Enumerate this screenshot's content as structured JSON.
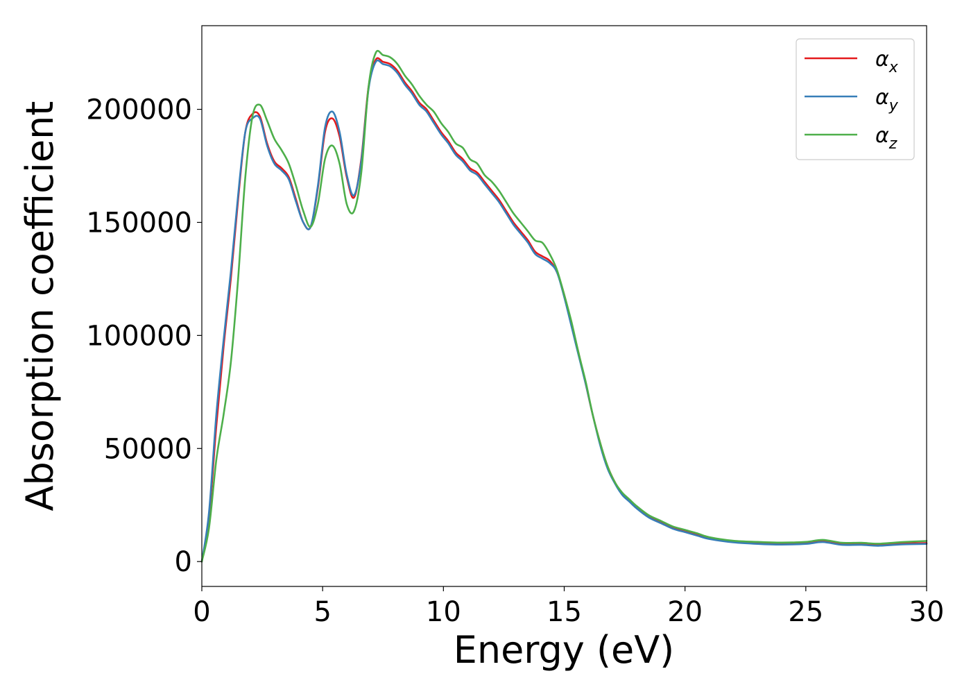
{
  "chart_data": {
    "type": "line",
    "xlabel": "Energy (eV)",
    "ylabel": "Absorption coefficient",
    "xlim": [
      0,
      30
    ],
    "ylim": [
      -11000,
      237000
    ],
    "xticks": [
      "0",
      "5",
      "10",
      "15",
      "20",
      "25",
      "30"
    ],
    "yticks": [
      "0",
      "50000",
      "100000",
      "150000",
      "200000"
    ],
    "grid": false,
    "legend_position": "top-right",
    "series": [
      {
        "name": "α_x",
        "legend_main": "α",
        "legend_sub": "x",
        "color": "#e41a1c",
        "x": [
          0,
          0.3,
          0.6,
          0.9,
          1.2,
          1.5,
          1.8,
          2.1,
          2.4,
          2.7,
          3.0,
          3.3,
          3.6,
          3.9,
          4.2,
          4.5,
          4.8,
          5.1,
          5.4,
          5.7,
          6.0,
          6.3,
          6.6,
          6.9,
          7.2,
          7.5,
          7.8,
          8.1,
          8.4,
          8.7,
          9.0,
          9.3,
          9.6,
          9.9,
          10.2,
          10.5,
          10.8,
          11.1,
          11.4,
          11.7,
          12.0,
          12.3,
          12.6,
          12.9,
          13.2,
          13.5,
          13.8,
          14.1,
          14.4,
          14.7,
          15.0,
          15.3,
          15.6,
          15.9,
          16.2,
          16.5,
          16.8,
          17.1,
          17.4,
          17.7,
          18.0,
          18.5,
          19.0,
          19.5,
          20.0,
          20.5,
          21.0,
          22.0,
          23.0,
          24.0,
          25.0,
          25.7,
          26.5,
          27.3,
          28.0,
          29.0,
          30.0
        ],
        "y": [
          0,
          20000,
          60000,
          95000,
          125000,
          160000,
          190000,
          198000,
          197000,
          185000,
          177000,
          174000,
          170000,
          160000,
          150000,
          148000,
          165000,
          190000,
          196000,
          188000,
          170000,
          161000,
          178000,
          210000,
          222000,
          221000,
          220000,
          217000,
          212000,
          208000,
          203000,
          200000,
          195000,
          190000,
          186000,
          181000,
          178000,
          174000,
          172000,
          168000,
          164000,
          160000,
          155000,
          150000,
          146000,
          142000,
          137000,
          135000,
          133000,
          128000,
          118000,
          105000,
          92000,
          78000,
          64000,
          52000,
          42000,
          35000,
          30000,
          27000,
          24000,
          20000,
          17500,
          15000,
          13500,
          12000,
          10500,
          9000,
          8300,
          8000,
          8200,
          9000,
          7800,
          7800,
          7500,
          8000,
          8200
        ]
      },
      {
        "name": "α_y",
        "legend_main": "α",
        "legend_sub": "y",
        "color": "#377eb8",
        "x": [
          0,
          0.3,
          0.6,
          0.9,
          1.2,
          1.5,
          1.8,
          2.1,
          2.4,
          2.7,
          3.0,
          3.3,
          3.6,
          3.9,
          4.2,
          4.5,
          4.8,
          5.1,
          5.4,
          5.7,
          6.0,
          6.3,
          6.6,
          6.9,
          7.2,
          7.5,
          7.8,
          8.1,
          8.4,
          8.7,
          9.0,
          9.3,
          9.6,
          9.9,
          10.2,
          10.5,
          10.8,
          11.1,
          11.4,
          11.7,
          12.0,
          12.3,
          12.6,
          12.9,
          13.2,
          13.5,
          13.8,
          14.1,
          14.4,
          14.7,
          15.0,
          15.3,
          15.6,
          15.9,
          16.2,
          16.5,
          16.8,
          17.1,
          17.4,
          17.7,
          18.0,
          18.5,
          19.0,
          19.5,
          20.0,
          20.5,
          21.0,
          22.0,
          23.0,
          24.0,
          25.0,
          25.7,
          26.5,
          27.3,
          28.0,
          29.0,
          30.0
        ],
        "y": [
          0,
          22000,
          65000,
          98000,
          128000,
          162000,
          190000,
          196000,
          196000,
          184000,
          176000,
          173000,
          169000,
          159000,
          150000,
          148000,
          166000,
          192000,
          199000,
          190000,
          171000,
          162000,
          177000,
          209000,
          221000,
          220000,
          219000,
          216000,
          211000,
          207000,
          202000,
          199000,
          194000,
          189000,
          185000,
          180000,
          177000,
          173000,
          171000,
          167000,
          163000,
          159000,
          154000,
          149000,
          145000,
          141000,
          136000,
          134000,
          132000,
          128000,
          117000,
          104000,
          91000,
          78000,
          64000,
          51000,
          41000,
          34500,
          29500,
          26500,
          23500,
          19500,
          17000,
          14500,
          13000,
          11500,
          10000,
          8500,
          7800,
          7500,
          7800,
          8600,
          7400,
          7400,
          7000,
          7600,
          7800
        ]
      },
      {
        "name": "α_z",
        "legend_main": "α",
        "legend_sub": "z",
        "color": "#4daf4a",
        "x": [
          0,
          0.3,
          0.6,
          0.9,
          1.2,
          1.5,
          1.8,
          2.1,
          2.4,
          2.7,
          3.0,
          3.3,
          3.6,
          3.9,
          4.2,
          4.5,
          4.8,
          5.1,
          5.4,
          5.7,
          6.0,
          6.3,
          6.6,
          6.9,
          7.2,
          7.5,
          7.8,
          8.1,
          8.4,
          8.7,
          9.0,
          9.3,
          9.6,
          9.9,
          10.2,
          10.5,
          10.8,
          11.1,
          11.4,
          11.7,
          12.0,
          12.3,
          12.6,
          12.9,
          13.2,
          13.5,
          13.8,
          14.1,
          14.4,
          14.7,
          15.0,
          15.3,
          15.6,
          15.9,
          16.2,
          16.5,
          16.8,
          17.1,
          17.4,
          17.7,
          18.0,
          18.5,
          19.0,
          19.5,
          20.0,
          20.5,
          21.0,
          22.0,
          23.0,
          24.0,
          25.0,
          25.7,
          26.5,
          27.3,
          28.0,
          29.0,
          30.0
        ],
        "y": [
          0,
          15000,
          45000,
          65000,
          88000,
          125000,
          170000,
          197000,
          202000,
          195000,
          187000,
          182000,
          176000,
          166000,
          155000,
          148000,
          158000,
          178000,
          184000,
          176000,
          158000,
          155000,
          172000,
          210000,
          225000,
          224000,
          223000,
          220000,
          215000,
          211000,
          206000,
          202000,
          199000,
          194000,
          190000,
          185000,
          183000,
          178000,
          176000,
          171000,
          168000,
          164000,
          159000,
          154000,
          150000,
          146000,
          142000,
          141000,
          136000,
          129000,
          118000,
          106000,
          92000,
          79000,
          64000,
          52000,
          42000,
          35000,
          30500,
          27500,
          24500,
          20500,
          18000,
          15500,
          14000,
          12500,
          10800,
          9200,
          8700,
          8400,
          8700,
          9600,
          8300,
          8300,
          7900,
          8600,
          9100
        ]
      }
    ]
  }
}
